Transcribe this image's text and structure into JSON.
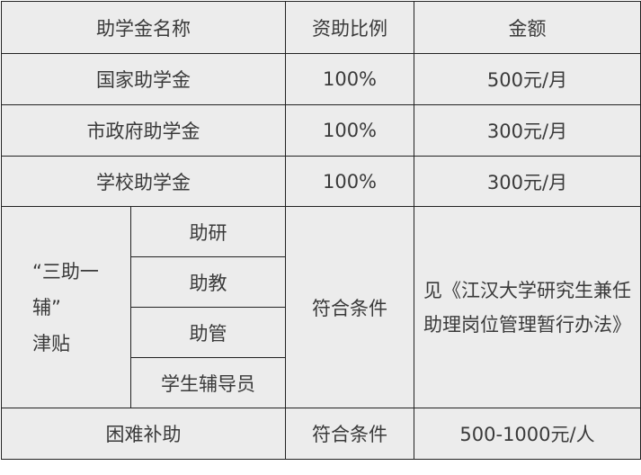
{
  "headers": [
    "助学金名称",
    "资助比例",
    "金额"
  ],
  "rows": [
    {
      "name": "国家助学金",
      "ratio": "100%",
      "amount": "500元/月"
    },
    {
      "name": "市政府助学金",
      "ratio": "100%",
      "amount": "300元/月"
    },
    {
      "name": "学校助学金",
      "ratio": "100%",
      "amount": "300元/月"
    }
  ],
  "subsidy": {
    "group_label_lines": [
      "“三助一",
      "辅”",
      "津贴"
    ],
    "items": [
      "助研",
      "助教",
      "助管",
      "学生辅导员"
    ],
    "ratio": "符合条件",
    "amount": "见《江汉大学研究生兼任助理岗位管理暂行办法》"
  },
  "hardship": {
    "name": "困难补助",
    "ratio": "符合条件",
    "amount": "500-1000元/人"
  }
}
